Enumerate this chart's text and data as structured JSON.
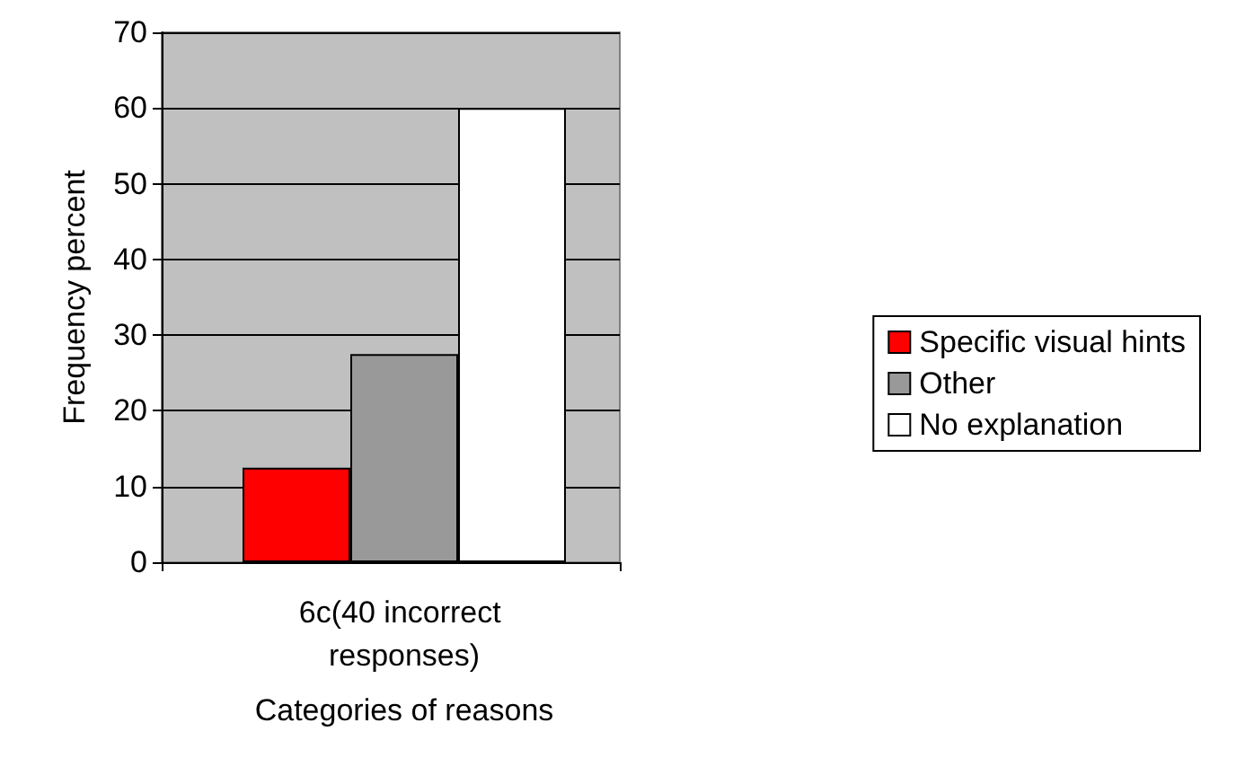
{
  "chart_data": {
    "type": "bar",
    "xlabel": "Categories of reasons",
    "ylabel": "Frequency percent",
    "categories": [
      null,
      "6c(40 incorrect responses)",
      null
    ],
    "series": [
      {
        "name": "Specific visual hints",
        "color": "#ff0000",
        "values": [
          12.5,
          null,
          null
        ]
      },
      {
        "name": "Other",
        "color": "#999999",
        "values": [
          null,
          27.5,
          null
        ]
      },
      {
        "name": "No explanation",
        "color": "#ffffff",
        "values": [
          null,
          null,
          60
        ]
      }
    ],
    "ylim": [
      0,
      70
    ],
    "yticks": [
      0,
      10,
      20,
      30,
      40,
      50,
      60,
      70
    ],
    "grid": "y",
    "legend": "right"
  }
}
